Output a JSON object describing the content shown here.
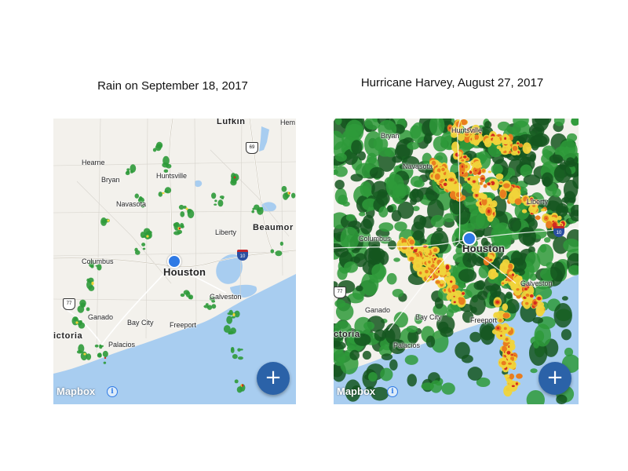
{
  "panels": [
    {
      "caption": "Rain on September 18, 2017",
      "labels": {
        "lufkin": "Lufkin",
        "hem": "Hem",
        "hearne": "Hearne",
        "bryan": "Bryan",
        "huntsville": "Huntsville",
        "navasota": "Navasota",
        "liberty": "Liberty",
        "beaumont": "Beaumor",
        "columbus": "Columbus",
        "houston": "Houston",
        "galveston": "Galveston",
        "ganado": "Ganado",
        "baycity": "Bay City",
        "freeport": "Freeport",
        "victoria": "ictoria",
        "palacios": "Palacios",
        "us69": "69",
        "us77": "77",
        "i10": "10"
      },
      "brand": "Mapbox",
      "info": "i",
      "fab": "+"
    },
    {
      "caption": "Hurricane Harvey, August 27, 2017",
      "labels": {
        "bryan": "Bryan",
        "huntsville": "Huntsville",
        "navasota": "Navasota",
        "liberty": "Liberty",
        "columbus": "Columbus",
        "houston": "Houston",
        "galveston": "Galveston",
        "ganado": "Ganado",
        "baycity": "Bay City",
        "freeport": "Freeport",
        "victoria": "ctoria",
        "palacios": "Palacios",
        "us77": "77",
        "i10": "10"
      },
      "brand": "Mapbox",
      "info": "i",
      "fab": "+"
    }
  ],
  "colors": {
    "water": "#a8cdf0",
    "land": "#f3f1ec",
    "rain_light": "#2e9a3a",
    "rain_dark": "#14561f",
    "rain_yellow": "#f0d43a",
    "rain_orange": "#e8781e",
    "rain_red": "#d32a1f",
    "location": "#2f7ae5",
    "fab": "#2b62a8"
  }
}
